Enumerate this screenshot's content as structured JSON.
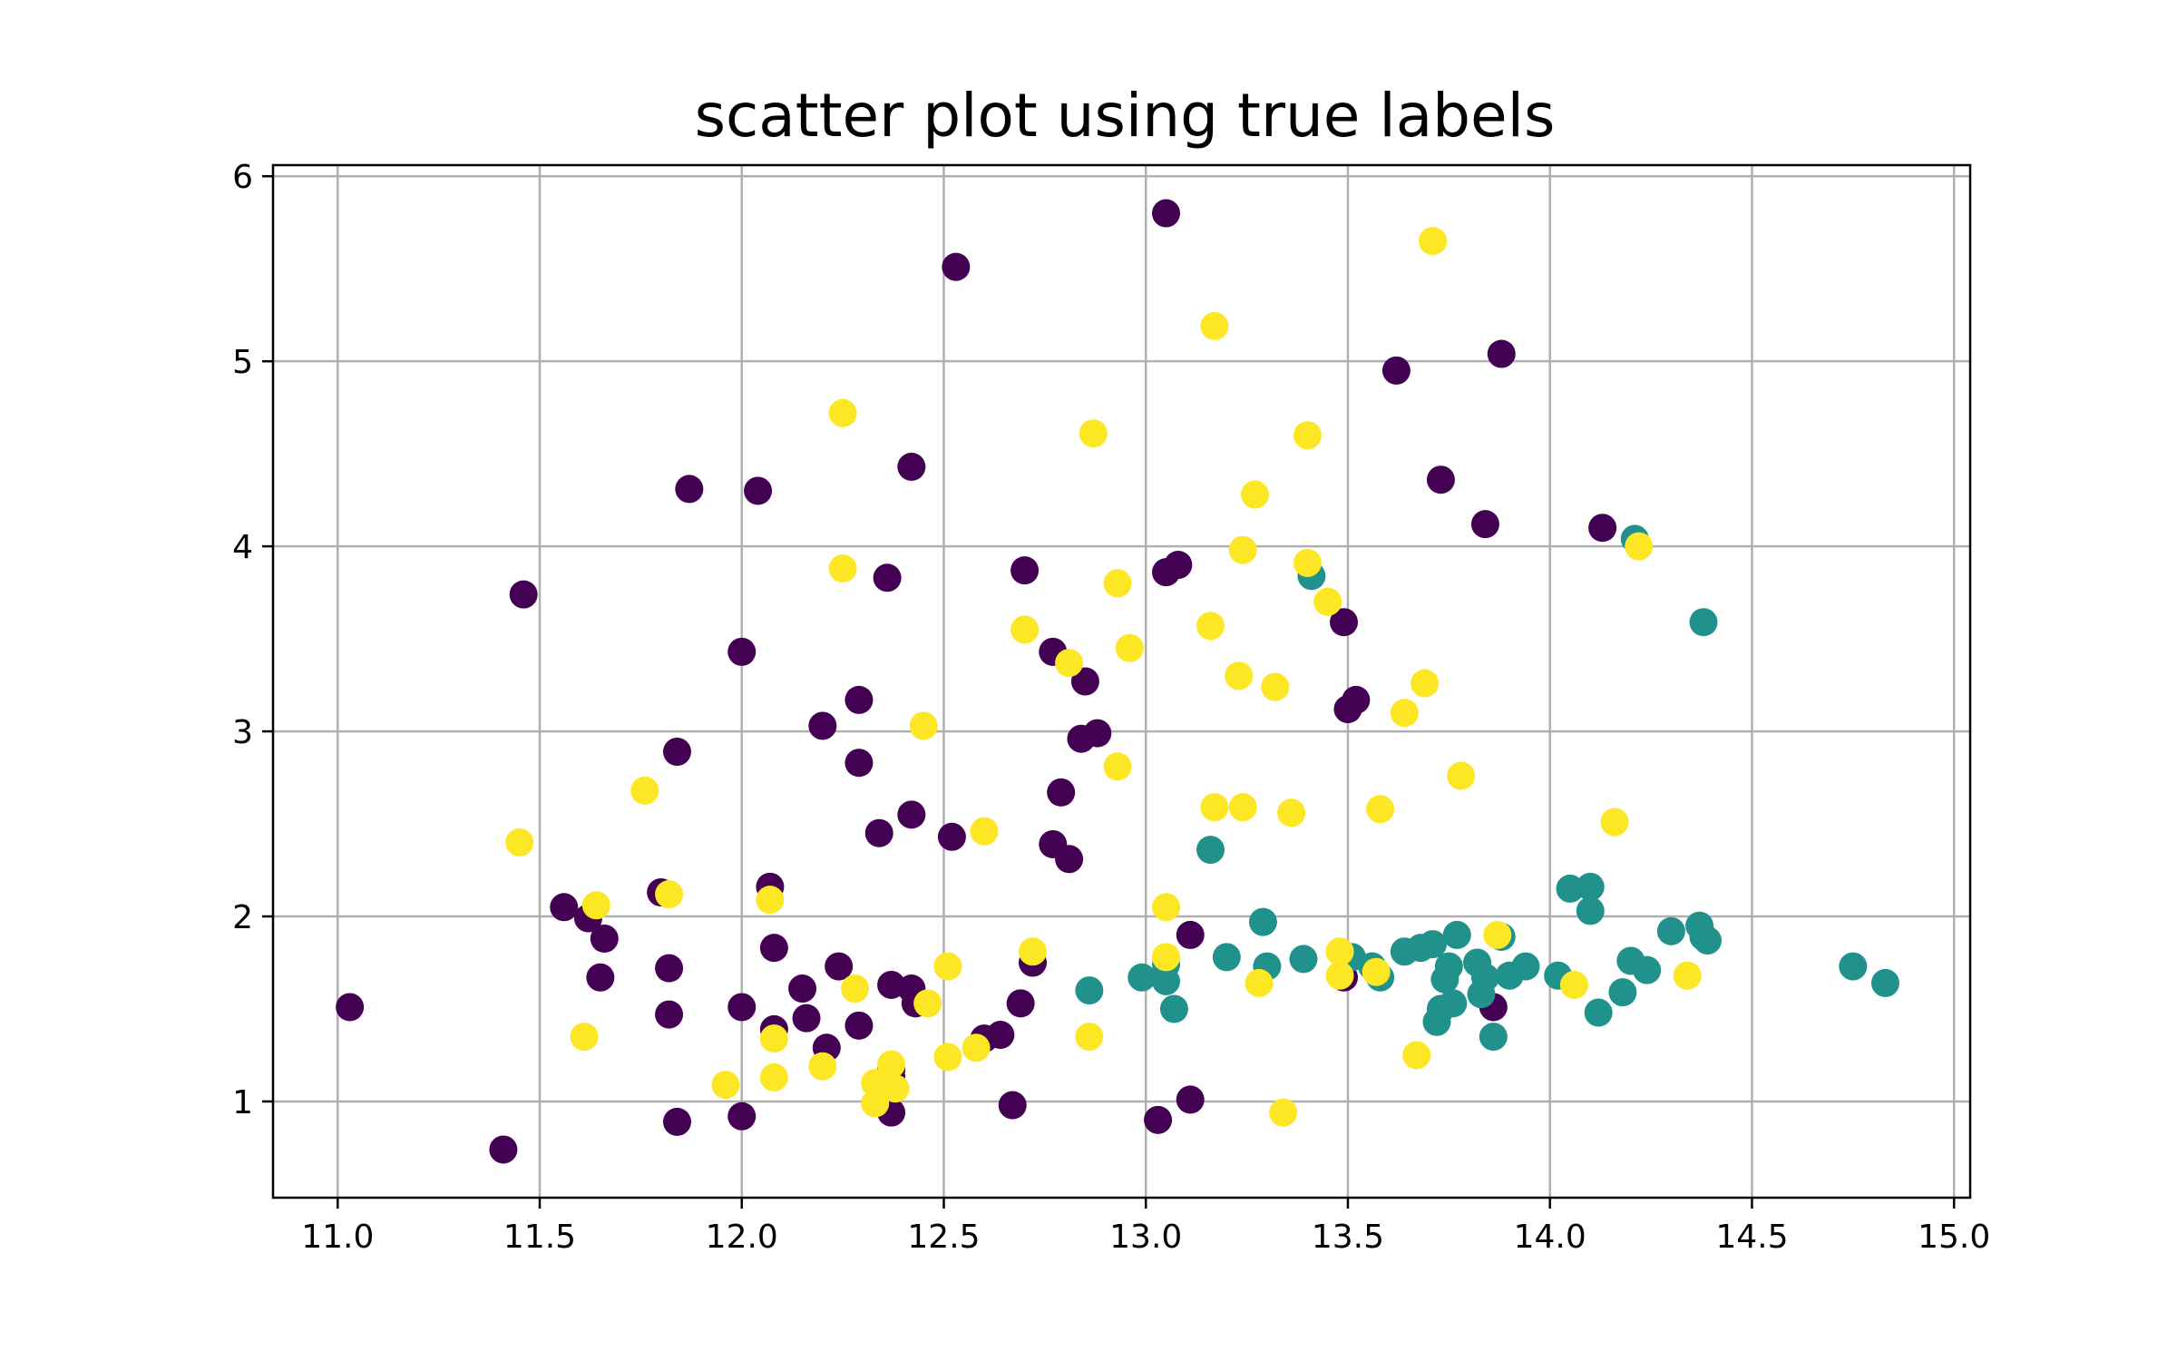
{
  "chart_data": {
    "type": "scatter",
    "title": "scatter plot using true labels",
    "xlabel": "",
    "ylabel": "",
    "xlim": [
      10.84,
      15.04
    ],
    "ylim": [
      0.48,
      6.06
    ],
    "xticks": [
      11.0,
      11.5,
      12.0,
      12.5,
      13.0,
      13.5,
      14.0,
      14.5,
      15.0
    ],
    "xtick_labels": [
      "11.0",
      "11.5",
      "12.0",
      "12.5",
      "13.0",
      "13.5",
      "14.0",
      "14.5",
      "15.0"
    ],
    "yticks": [
      1,
      2,
      3,
      4,
      5,
      6
    ],
    "ytick_labels": [
      "1",
      "2",
      "3",
      "4",
      "5",
      "6"
    ],
    "grid": true,
    "legend": "none",
    "colors": {
      "0": "#440154",
      "1": "#21918c",
      "2": "#fde725"
    },
    "series": [
      {
        "class": 0,
        "points": [
          [
            11.03,
            1.51
          ],
          [
            11.41,
            0.74
          ],
          [
            11.46,
            3.74
          ],
          [
            11.56,
            2.05
          ],
          [
            11.62,
            1.99
          ],
          [
            11.65,
            1.67
          ],
          [
            11.66,
            1.88
          ],
          [
            11.8,
            2.13
          ],
          [
            11.82,
            1.72
          ],
          [
            11.82,
            1.47
          ],
          [
            11.84,
            2.89
          ],
          [
            11.84,
            0.89
          ],
          [
            11.87,
            4.31
          ],
          [
            12.0,
            3.43
          ],
          [
            12.0,
            1.51
          ],
          [
            12.0,
            0.92
          ],
          [
            12.04,
            4.3
          ],
          [
            12.07,
            2.16
          ],
          [
            12.08,
            1.83
          ],
          [
            12.08,
            1.39
          ],
          [
            12.15,
            1.61
          ],
          [
            12.16,
            1.45
          ],
          [
            12.2,
            3.03
          ],
          [
            12.21,
            1.29
          ],
          [
            12.24,
            1.73
          ],
          [
            12.29,
            3.17
          ],
          [
            12.29,
            2.83
          ],
          [
            12.29,
            1.41
          ],
          [
            12.34,
            2.45
          ],
          [
            12.36,
            3.83
          ],
          [
            12.37,
            1.63
          ],
          [
            12.37,
            1.17
          ],
          [
            12.37,
            1.13
          ],
          [
            12.37,
            0.94
          ],
          [
            12.42,
            4.43
          ],
          [
            12.42,
            2.55
          ],
          [
            12.42,
            1.61
          ],
          [
            12.43,
            1.53
          ],
          [
            12.52,
            2.43
          ],
          [
            12.53,
            5.51
          ],
          [
            12.6,
            1.34
          ],
          [
            12.64,
            1.36
          ],
          [
            12.67,
            0.98
          ],
          [
            12.69,
            1.53
          ],
          [
            12.7,
            3.87
          ],
          [
            12.72,
            1.75
          ],
          [
            12.77,
            3.43
          ],
          [
            12.77,
            2.39
          ],
          [
            12.79,
            2.67
          ],
          [
            12.81,
            2.31
          ],
          [
            12.84,
            2.96
          ],
          [
            12.85,
            3.27
          ],
          [
            12.88,
            2.99
          ],
          [
            13.03,
            0.9
          ],
          [
            13.05,
            5.8
          ],
          [
            13.05,
            3.86
          ],
          [
            13.08,
            3.9
          ],
          [
            13.11,
            1.9
          ],
          [
            13.11,
            1.01
          ],
          [
            13.49,
            3.59
          ],
          [
            13.49,
            1.67
          ],
          [
            13.5,
            3.12
          ],
          [
            13.52,
            3.17
          ],
          [
            13.62,
            4.95
          ],
          [
            13.73,
            4.36
          ],
          [
            13.84,
            4.12
          ],
          [
            13.86,
            1.51
          ],
          [
            13.88,
            5.04
          ],
          [
            14.13,
            4.1
          ]
        ]
      },
      {
        "class": 1,
        "points": [
          [
            12.86,
            1.6
          ],
          [
            12.99,
            1.67
          ],
          [
            13.05,
            1.74
          ],
          [
            13.05,
            1.65
          ],
          [
            13.07,
            1.5
          ],
          [
            13.16,
            2.36
          ],
          [
            13.2,
            1.78
          ],
          [
            13.29,
            1.97
          ],
          [
            13.3,
            1.73
          ],
          [
            13.39,
            1.77
          ],
          [
            13.41,
            3.84
          ],
          [
            13.51,
            1.78
          ],
          [
            13.56,
            1.73
          ],
          [
            13.58,
            1.67
          ],
          [
            13.64,
            1.81
          ],
          [
            13.68,
            1.83
          ],
          [
            13.71,
            1.85
          ],
          [
            13.72,
            1.43
          ],
          [
            13.73,
            1.5
          ],
          [
            13.74,
            1.66
          ],
          [
            13.75,
            1.73
          ],
          [
            13.76,
            1.53
          ],
          [
            13.77,
            1.9
          ],
          [
            13.82,
            1.75
          ],
          [
            13.83,
            1.58
          ],
          [
            13.84,
            1.67
          ],
          [
            13.86,
            1.35
          ],
          [
            13.88,
            1.89
          ],
          [
            13.9,
            1.68
          ],
          [
            13.94,
            1.73
          ],
          [
            14.02,
            1.68
          ],
          [
            14.05,
            2.15
          ],
          [
            14.1,
            2.16
          ],
          [
            14.1,
            2.03
          ],
          [
            14.12,
            1.48
          ],
          [
            14.18,
            1.59
          ],
          [
            14.2,
            1.76
          ],
          [
            14.21,
            4.04
          ],
          [
            14.24,
            1.71
          ],
          [
            14.3,
            1.92
          ],
          [
            14.37,
            1.95
          ],
          [
            14.38,
            3.59
          ],
          [
            14.38,
            1.89
          ],
          [
            14.39,
            1.87
          ],
          [
            14.75,
            1.73
          ],
          [
            14.83,
            1.64
          ]
        ]
      },
      {
        "class": 2,
        "points": [
          [
            11.45,
            2.4
          ],
          [
            11.61,
            1.35
          ],
          [
            11.64,
            2.06
          ],
          [
            11.76,
            2.68
          ],
          [
            11.82,
            2.12
          ],
          [
            11.96,
            1.09
          ],
          [
            12.07,
            2.09
          ],
          [
            12.08,
            1.34
          ],
          [
            12.08,
            1.13
          ],
          [
            12.2,
            1.19
          ],
          [
            12.25,
            4.72
          ],
          [
            12.25,
            3.88
          ],
          [
            12.28,
            1.61
          ],
          [
            12.33,
            1.1
          ],
          [
            12.33,
            0.99
          ],
          [
            12.37,
            1.2
          ],
          [
            12.38,
            1.07
          ],
          [
            12.45,
            3.03
          ],
          [
            12.46,
            1.53
          ],
          [
            12.51,
            1.73
          ],
          [
            12.51,
            1.24
          ],
          [
            12.58,
            1.29
          ],
          [
            12.6,
            2.46
          ],
          [
            12.7,
            3.55
          ],
          [
            12.72,
            1.81
          ],
          [
            12.81,
            3.37
          ],
          [
            12.86,
            1.35
          ],
          [
            12.87,
            4.61
          ],
          [
            12.93,
            3.8
          ],
          [
            12.93,
            2.81
          ],
          [
            12.96,
            3.45
          ],
          [
            13.05,
            2.05
          ],
          [
            13.05,
            1.78
          ],
          [
            13.16,
            3.57
          ],
          [
            13.17,
            5.19
          ],
          [
            13.17,
            2.59
          ],
          [
            13.23,
            3.3
          ],
          [
            13.24,
            3.98
          ],
          [
            13.24,
            2.59
          ],
          [
            13.27,
            4.28
          ],
          [
            13.28,
            1.64
          ],
          [
            13.32,
            3.24
          ],
          [
            13.34,
            0.94
          ],
          [
            13.36,
            2.56
          ],
          [
            13.4,
            4.6
          ],
          [
            13.4,
            3.91
          ],
          [
            13.45,
            3.7
          ],
          [
            13.48,
            1.81
          ],
          [
            13.48,
            1.68
          ],
          [
            13.57,
            1.7
          ],
          [
            13.58,
            2.58
          ],
          [
            13.64,
            3.1
          ],
          [
            13.67,
            1.25
          ],
          [
            13.69,
            3.26
          ],
          [
            13.71,
            5.65
          ],
          [
            13.78,
            2.76
          ],
          [
            13.87,
            1.9
          ],
          [
            14.06,
            1.63
          ],
          [
            14.16,
            2.51
          ],
          [
            14.22,
            4.0
          ],
          [
            14.34,
            1.68
          ]
        ]
      }
    ]
  }
}
